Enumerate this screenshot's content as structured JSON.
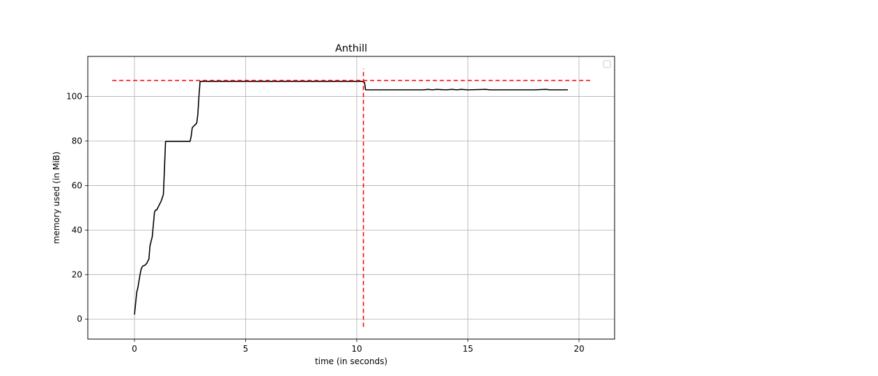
{
  "chart_data": {
    "type": "line",
    "title": "Anthill",
    "xlabel": "time (in seconds)",
    "ylabel": "memory used (in MiB)",
    "xlim": [
      -2.1,
      21.6
    ],
    "ylim": [
      -9,
      118
    ],
    "xticks": [
      0,
      5,
      10,
      15,
      20
    ],
    "yticks": [
      0,
      20,
      40,
      60,
      80,
      100
    ],
    "grid": true,
    "legend": {
      "placement": "top-right",
      "entries": []
    },
    "series": [
      {
        "color": "#000000",
        "x": [
          0.0,
          0.1,
          0.15,
          0.2,
          0.25,
          0.3,
          0.35,
          0.4,
          0.45,
          0.5,
          0.55,
          0.6,
          0.65,
          0.7,
          0.8,
          0.9,
          0.95,
          1.0,
          1.05,
          1.1,
          1.15,
          1.2,
          1.3,
          1.4,
          1.45,
          1.5,
          2.0,
          2.5,
          2.55,
          2.6,
          2.65,
          2.7,
          2.75,
          2.8,
          2.85,
          2.9,
          2.95,
          3.0,
          4.0,
          5.0,
          6.0,
          7.0,
          8.0,
          9.0,
          10.0,
          10.2,
          10.3,
          10.35,
          10.4,
          10.5,
          12.0,
          13.0,
          13.2,
          13.4,
          13.6,
          14.0,
          14.3,
          14.5,
          14.7,
          15.0,
          15.8,
          16.0,
          17.0,
          18.0,
          18.5,
          18.7,
          19.0,
          19.5
        ],
        "y": [
          2,
          12,
          14,
          17,
          20,
          22.5,
          23.5,
          24,
          24,
          24.5,
          25,
          26,
          27,
          33,
          37,
          48,
          49,
          49,
          50,
          51,
          52,
          53,
          56,
          79.8,
          79.8,
          79.8,
          79.8,
          79.8,
          82,
          86,
          86.5,
          87,
          87.5,
          88,
          92,
          100,
          106.8,
          106.8,
          106.8,
          106.8,
          106.8,
          106.8,
          106.8,
          106.8,
          106.8,
          106.8,
          106.8,
          106.3,
          103,
          103,
          103,
          103,
          103.2,
          103,
          103.2,
          103,
          103.2,
          103,
          103.2,
          103,
          103.2,
          103,
          103,
          103,
          103.2,
          103,
          103,
          103
        ]
      }
    ],
    "reference_lines": [
      {
        "orientation": "horizontal",
        "y": 107.2,
        "x_range": [
          -1,
          20.5
        ],
        "color": "#ff0000",
        "style": "dashed"
      },
      {
        "orientation": "vertical",
        "x": 10.3,
        "y_range": [
          -3.5,
          112.5
        ],
        "color": "#ff0000",
        "style": "dashed"
      }
    ],
    "colors": {
      "line": "#000000",
      "reference": "#ff0000",
      "grid": "#b0b0b0",
      "frame": "#000000"
    }
  }
}
